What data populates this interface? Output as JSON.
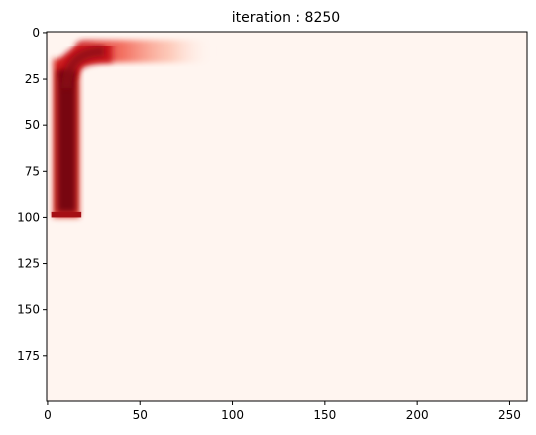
{
  "chart_data": {
    "type": "heatmap",
    "title": "iteration : 8250",
    "xlabel": "",
    "ylabel": "",
    "xlim": [
      -0.5,
      259.5
    ],
    "ylim": [
      199.5,
      -0.5
    ],
    "x_ticks": [
      0,
      50,
      100,
      150,
      200,
      250
    ],
    "y_ticks": [
      0,
      25,
      50,
      75,
      100,
      125,
      150,
      175
    ],
    "colormap": "Reds",
    "background_color": "#fff5f0",
    "grid": false,
    "field": {
      "vertical_band": {
        "x_center": 10,
        "half_width": 7,
        "y_start": 14,
        "y_end": 100
      },
      "horizontal_band": {
        "y_center": 10,
        "half_width": 6,
        "x_start": 14,
        "x_end": 90
      },
      "corner": {
        "x": 24,
        "y": 20
      }
    }
  }
}
